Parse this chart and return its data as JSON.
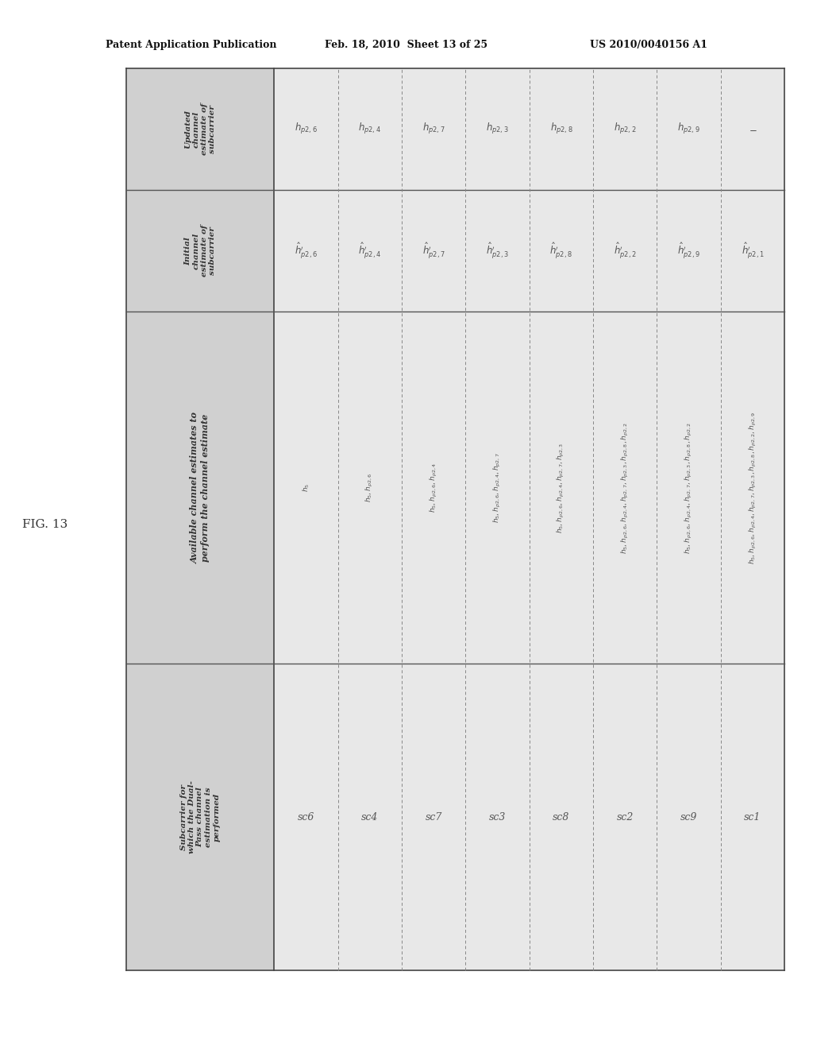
{
  "header_text_left": "Patent Application Publication",
  "header_text_mid": "Feb. 18, 2010  Sheet 13 of 25",
  "header_text_right": "US 2010/0040156 A1",
  "fig_label": "FIG. 13",
  "bg_color": "#ffffff",
  "row_headers": [
    "Updated\nchannel\nestimate of\nsubcarrier",
    "Initial\nchannel\nestimate of\nsubcarrier",
    "Available channel estimates to\nperform the channel estimate",
    "Subcarrier for\nwhich the Dual-\nPass channel\nestimation is\nperformed"
  ],
  "sc_labels": [
    "sc6",
    "sc4",
    "sc7",
    "sc3",
    "sc8",
    "sc2",
    "sc9",
    "sc1"
  ],
  "updated_vals": [
    "$h_{p2,6}$",
    "$h_{p2,4}$",
    "$h_{p2,7}$",
    "$h_{p2,3}$",
    "$h_{p2,8}$",
    "$h_{p2,2}$",
    "$h_{p2,9}$",
    "$-$"
  ],
  "initial_vals": [
    "$\\hat{h}^{\\prime}_{p2,6}$",
    "$\\hat{h}^{\\prime}_{p2,4}$",
    "$\\hat{h}^{\\prime}_{p2,7}$",
    "$\\hat{h}^{\\prime}_{p2,3}$",
    "$\\hat{h}^{\\prime}_{p2,8}$",
    "$\\hat{h}^{\\prime}_{p2,2}$",
    "$\\hat{h}^{\\prime}_{p2,9}$",
    "$\\hat{h}^{\\prime}_{p2,1}$"
  ],
  "available_vals": [
    "$h_5$",
    "$h_5, h_{p2,6}$",
    "$h_5, h_{p2,6}, h_{p2,4}$",
    "$h_5, h_{p2,6}, h_{p2,4}, h_{p2,7}$",
    "$h_5, h_{p2,6}, h_{p2,4}, h_{p2,7}, h_{p2,3}$",
    "$h_5, h_{p2,6}, h_{p2,4}, h_{p2,7}, h_{p2,3}, h_{p2,8}, h_{p2,2}$",
    "$h_5, h_{p2,6}, h_{p2,4}, h_{p2,7}, h_{p2,3}, h_{p2,8}, h_{p2,2}$",
    "$h_5, h_{p2,6}, h_{p2,4}, h_{p2,7}, h_{p2,3}, h_{p2,8}, h_{p2,2}, h_{p2,9}$"
  ],
  "header_col_bg": "#d0d0d0",
  "data_col_bg": "#e8e8e8",
  "border_color": "#555555",
  "text_color": "#333333"
}
